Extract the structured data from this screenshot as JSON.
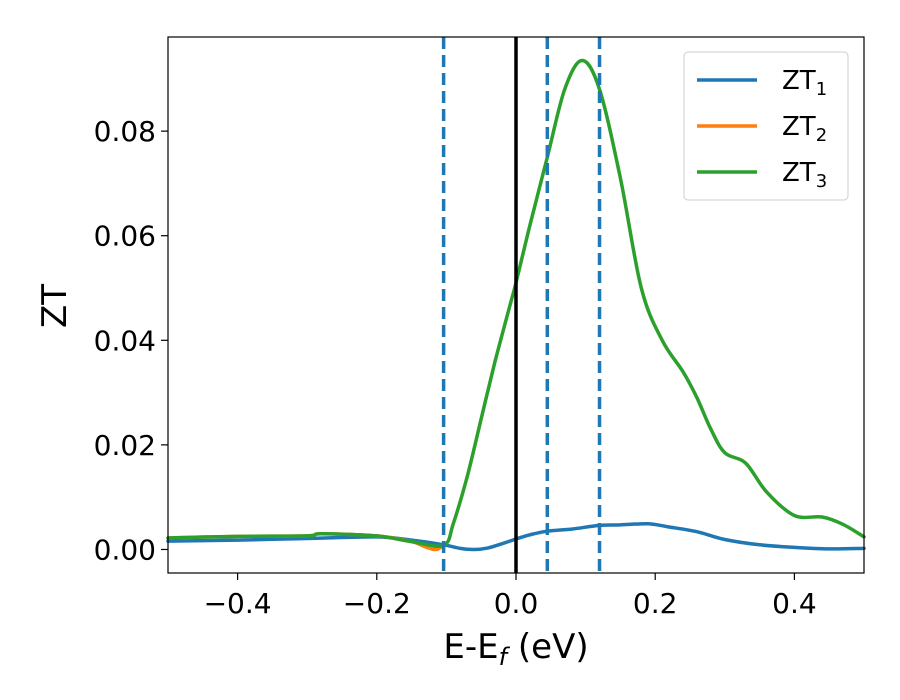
{
  "chart_data": {
    "type": "line",
    "title": "",
    "xlabel": {
      "main": "E-E",
      "sub": "f",
      "suffix": " (eV)"
    },
    "ylabel": "ZT",
    "xlim": [
      -0.5,
      0.5
    ],
    "ylim": [
      -0.0045,
      0.098
    ],
    "xticks": [
      -0.4,
      -0.2,
      0.0,
      0.2,
      0.4
    ],
    "xtick_labels": [
      "−0.4",
      "−0.2",
      "0.0",
      "0.2",
      "0.4"
    ],
    "yticks": [
      0.0,
      0.02,
      0.04,
      0.06,
      0.08
    ],
    "ytick_labels": [
      "0.00",
      "0.02",
      "0.04",
      "0.06",
      "0.08"
    ],
    "grid": false,
    "legend_position": "top-right",
    "vertical_lines": [
      {
        "x": -0.104,
        "style": "dashed",
        "color": "#1f77b4"
      },
      {
        "x": 0.0,
        "style": "solid",
        "color": "#000000"
      },
      {
        "x": 0.045,
        "style": "dashed",
        "color": "#1f77b4"
      },
      {
        "x": 0.12,
        "style": "dashed",
        "color": "#1f77b4"
      }
    ],
    "series": [
      {
        "name": "ZT",
        "name_sub": "1",
        "color": "#1f77b4",
        "x": [
          -0.5,
          -0.4,
          -0.3,
          -0.2,
          -0.15,
          -0.104,
          -0.08,
          -0.06,
          -0.04,
          -0.02,
          0.0,
          0.02,
          0.045,
          0.08,
          0.12,
          0.15,
          0.19,
          0.22,
          0.26,
          0.3,
          0.35,
          0.4,
          0.45,
          0.5
        ],
        "y": [
          0.0016,
          0.0018,
          0.0021,
          0.0024,
          0.0018,
          0.0009,
          0.0002,
          0.0,
          0.0003,
          0.0011,
          0.002,
          0.0028,
          0.0035,
          0.0039,
          0.0046,
          0.0047,
          0.0049,
          0.0043,
          0.0034,
          0.0019,
          0.0009,
          0.0004,
          0.0001,
          0.0002
        ]
      },
      {
        "name": "ZT",
        "name_sub": "2",
        "color": "#ff7f0e",
        "x": [
          -0.5,
          -0.4,
          -0.3,
          -0.28,
          -0.2,
          -0.15,
          -0.13,
          -0.115,
          -0.104
        ],
        "y": [
          0.0022,
          0.0025,
          0.0026,
          0.003,
          0.0026,
          0.0015,
          0.0005,
          0.0,
          0.0008
        ]
      },
      {
        "name": "ZT",
        "name_sub": "3",
        "color": "#2ca02c",
        "x": [
          -0.5,
          -0.4,
          -0.3,
          -0.28,
          -0.2,
          -0.15,
          -0.104,
          -0.09,
          -0.07,
          -0.05,
          -0.03,
          -0.01,
          0.0,
          0.02,
          0.045,
          0.07,
          0.095,
          0.12,
          0.15,
          0.18,
          0.21,
          0.24,
          0.26,
          0.28,
          0.3,
          0.33,
          0.36,
          0.4,
          0.44,
          0.47,
          0.5
        ],
        "y": [
          0.0022,
          0.0025,
          0.0026,
          0.003,
          0.0026,
          0.0015,
          0.0008,
          0.005,
          0.014,
          0.025,
          0.036,
          0.046,
          0.051,
          0.062,
          0.075,
          0.088,
          0.0935,
          0.088,
          0.071,
          0.05,
          0.04,
          0.034,
          0.029,
          0.023,
          0.0185,
          0.0165,
          0.011,
          0.0065,
          0.0062,
          0.0048,
          0.0024
        ]
      }
    ]
  }
}
